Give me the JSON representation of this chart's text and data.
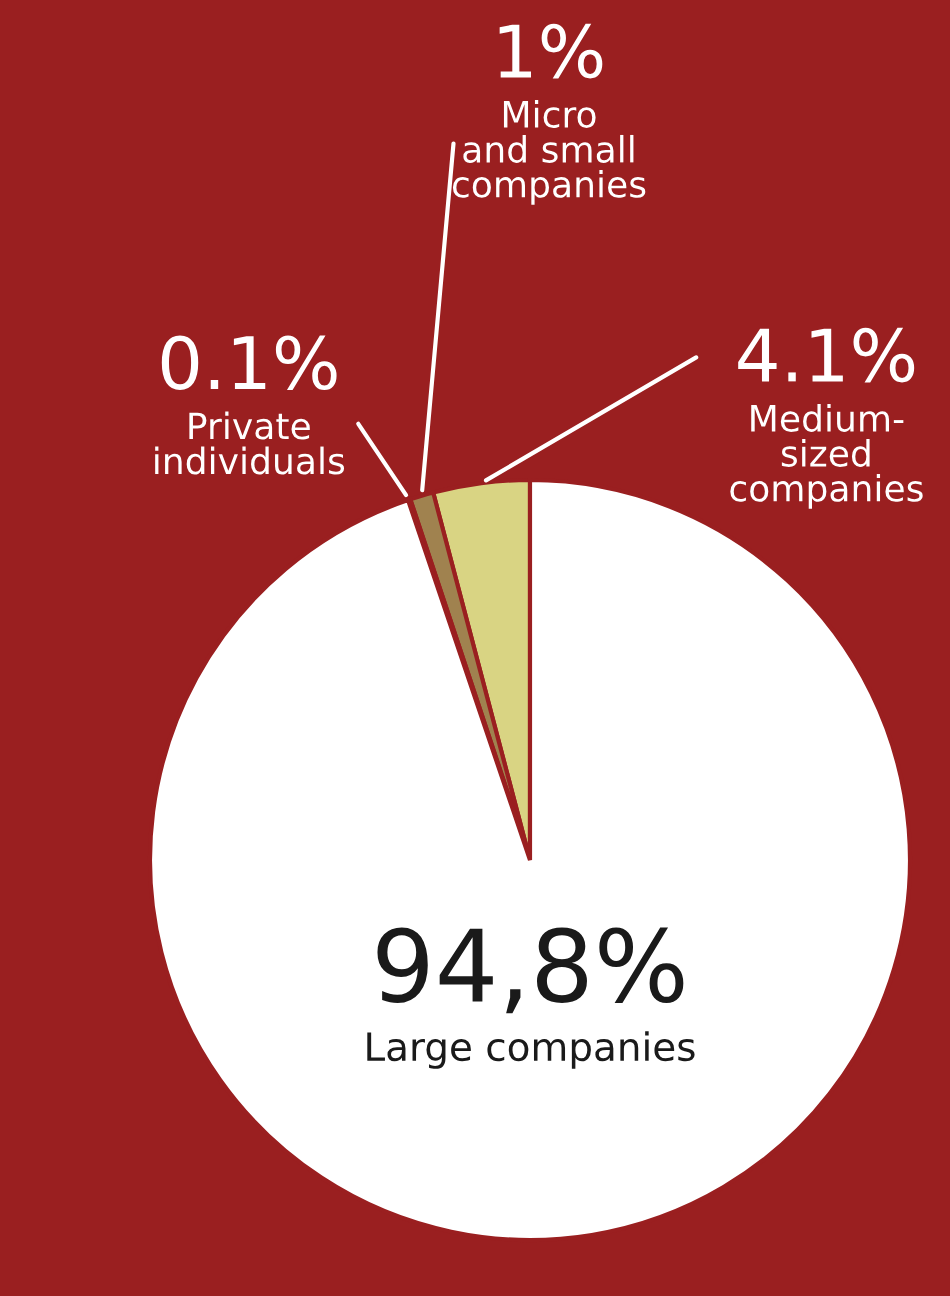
{
  "chart_data": {
    "type": "pie",
    "categories": [
      "Medium-sized companies",
      "Micro and small companies",
      "Private individuals",
      "Large companies"
    ],
    "values": [
      4.1,
      1,
      0.1,
      94.8
    ],
    "value_labels": [
      "4.1%",
      "1%",
      "0.1%",
      "94,8%"
    ],
    "colors": [
      "#d9d483",
      "#a0824f",
      "#ffffff",
      "#ffffff"
    ],
    "legend": false
  }
}
